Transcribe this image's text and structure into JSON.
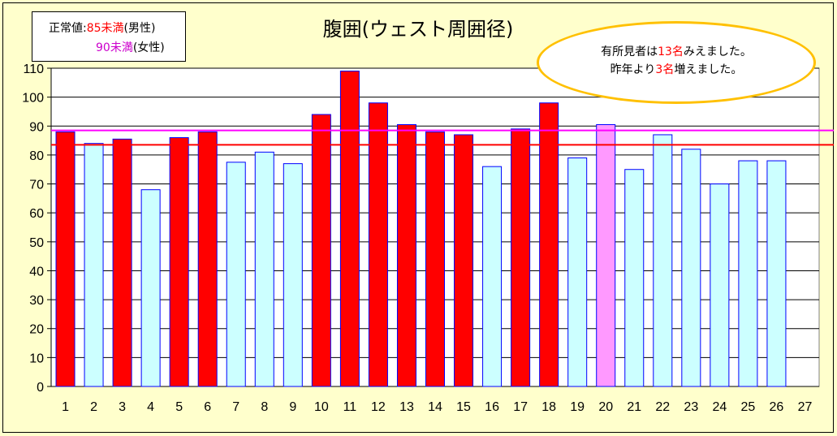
{
  "chart_data": {
    "type": "bar",
    "title": "腹囲(ウェスト周囲径)",
    "xlabel": "",
    "ylabel": "",
    "categories": [
      "1",
      "2",
      "3",
      "4",
      "5",
      "6",
      "7",
      "8",
      "9",
      "10",
      "11",
      "12",
      "13",
      "14",
      "15",
      "16",
      "17",
      "18",
      "19",
      "20",
      "21",
      "22",
      "23",
      "24",
      "25",
      "26",
      "27"
    ],
    "values": [
      88,
      84,
      85.5,
      68,
      86,
      88,
      77.5,
      81,
      77,
      94,
      109,
      98,
      90.5,
      88,
      87,
      76,
      89,
      98,
      79,
      90.5,
      75,
      87,
      82,
      70,
      78,
      78,
      null
    ],
    "bar_colors": [
      "#ff0000",
      "#ccffff",
      "#ff0000",
      "#ccffff",
      "#ff0000",
      "#ff0000",
      "#ccffff",
      "#ccffff",
      "#ccffff",
      "#ff0000",
      "#ff0000",
      "#ff0000",
      "#ff0000",
      "#ff0000",
      "#ff0000",
      "#ccffff",
      "#ff0000",
      "#ff0000",
      "#ccffff",
      "#ff99ff",
      "#ccffff",
      "#ccffff",
      "#ccffff",
      "#ccffff",
      "#ccffff",
      "#ccffff",
      null
    ],
    "ylim": [
      0,
      110
    ],
    "yticks": [
      0,
      10,
      20,
      30,
      40,
      50,
      60,
      70,
      80,
      90,
      100,
      110
    ],
    "grid": true,
    "reference_lines": [
      {
        "value": 83.5,
        "color": "#ff0000"
      },
      {
        "value": 88.5,
        "color": "#ff00ff"
      }
    ]
  },
  "legend": {
    "label": "正常値:",
    "male_value": "85未満",
    "male_suffix": "(男性)",
    "female_value": "90未満",
    "female_suffix": "(女性)"
  },
  "callout": {
    "line1_prefix": "有所見者は",
    "line1_count": "13名",
    "line1_suffix": "みえました。",
    "line2_prefix": "昨年より",
    "line2_count": "3名",
    "line2_suffix": "増えました。"
  },
  "colors": {
    "background": "#ffffcc",
    "plot_background": "#ffffff",
    "male_limit": "#ff0000",
    "female_limit": "#ff00ff",
    "callout_border": "#ffc000"
  }
}
